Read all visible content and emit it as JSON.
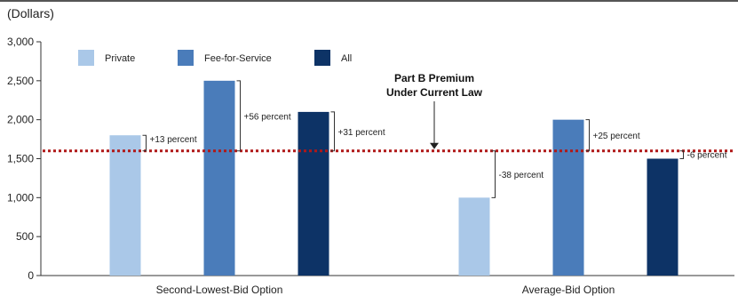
{
  "chart_data": {
    "type": "bar",
    "unit_label": "(Dollars)",
    "categories": [
      "Second-Lowest-Bid Option",
      "Average-Bid Option"
    ],
    "series": [
      {
        "name": "Private",
        "color": "#aac8e8",
        "values": [
          1800,
          1000
        ]
      },
      {
        "name": "Fee-for-Service",
        "color": "#4a7cba",
        "values": [
          2500,
          2000
        ]
      },
      {
        "name": "All",
        "color": "#0d3366",
        "values": [
          2100,
          1500
        ]
      }
    ],
    "yticks": [
      "0",
      "500",
      "1,000",
      "1,500",
      "2,000",
      "2,500",
      "3,000"
    ],
    "ylim": [
      0,
      3000
    ],
    "reference_line": {
      "value": 1600,
      "label_line1": "Part B Premium",
      "label_line2": "Under Current Law",
      "color": "#b01818"
    },
    "annotations": [
      [
        "+13 percent",
        "+56 percent",
        "+31 percent"
      ],
      [
        "-38 percent",
        "+25 percent",
        "-6 percent"
      ]
    ],
    "legend_position": "top-left",
    "grid": false
  }
}
